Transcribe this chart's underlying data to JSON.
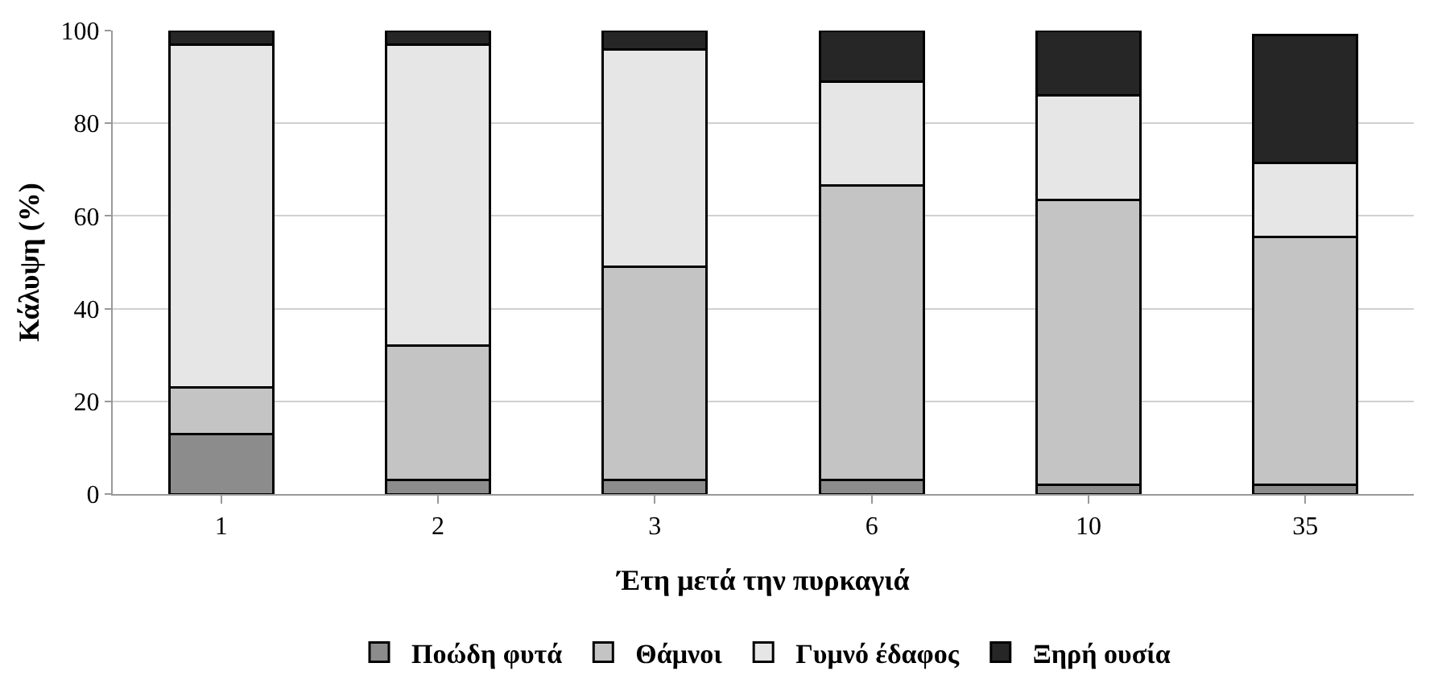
{
  "chart_data": {
    "type": "bar",
    "stacked": true,
    "xlabel": "Έτη μετά την πυρκαγιά",
    "ylabel": "Κάλυψη (%)",
    "categories": [
      "1",
      "2",
      "3",
      "6",
      "10",
      "35"
    ],
    "series": [
      {
        "name": "Ποώδη φυτά",
        "color": "#8c8c8c",
        "values": [
          13,
          3,
          3,
          3,
          2,
          2
        ]
      },
      {
        "name": "Θάμνοι",
        "color": "#c4c4c4",
        "values": [
          10,
          29,
          46,
          63.5,
          61.5,
          53.5
        ]
      },
      {
        "name": "Γυμνό έδαφος",
        "color": "#e6e6e6",
        "values": [
          74,
          65,
          47,
          22.5,
          22.5,
          16
        ]
      },
      {
        "name": "Ξηρή ουσία",
        "color": "#262626",
        "values": [
          3,
          3,
          4,
          11,
          14,
          27.5
        ]
      }
    ],
    "ylim": [
      0,
      100
    ],
    "yticks": [
      0,
      20,
      40,
      60,
      80,
      100
    ],
    "grid": "y",
    "legend": "bottom"
  }
}
